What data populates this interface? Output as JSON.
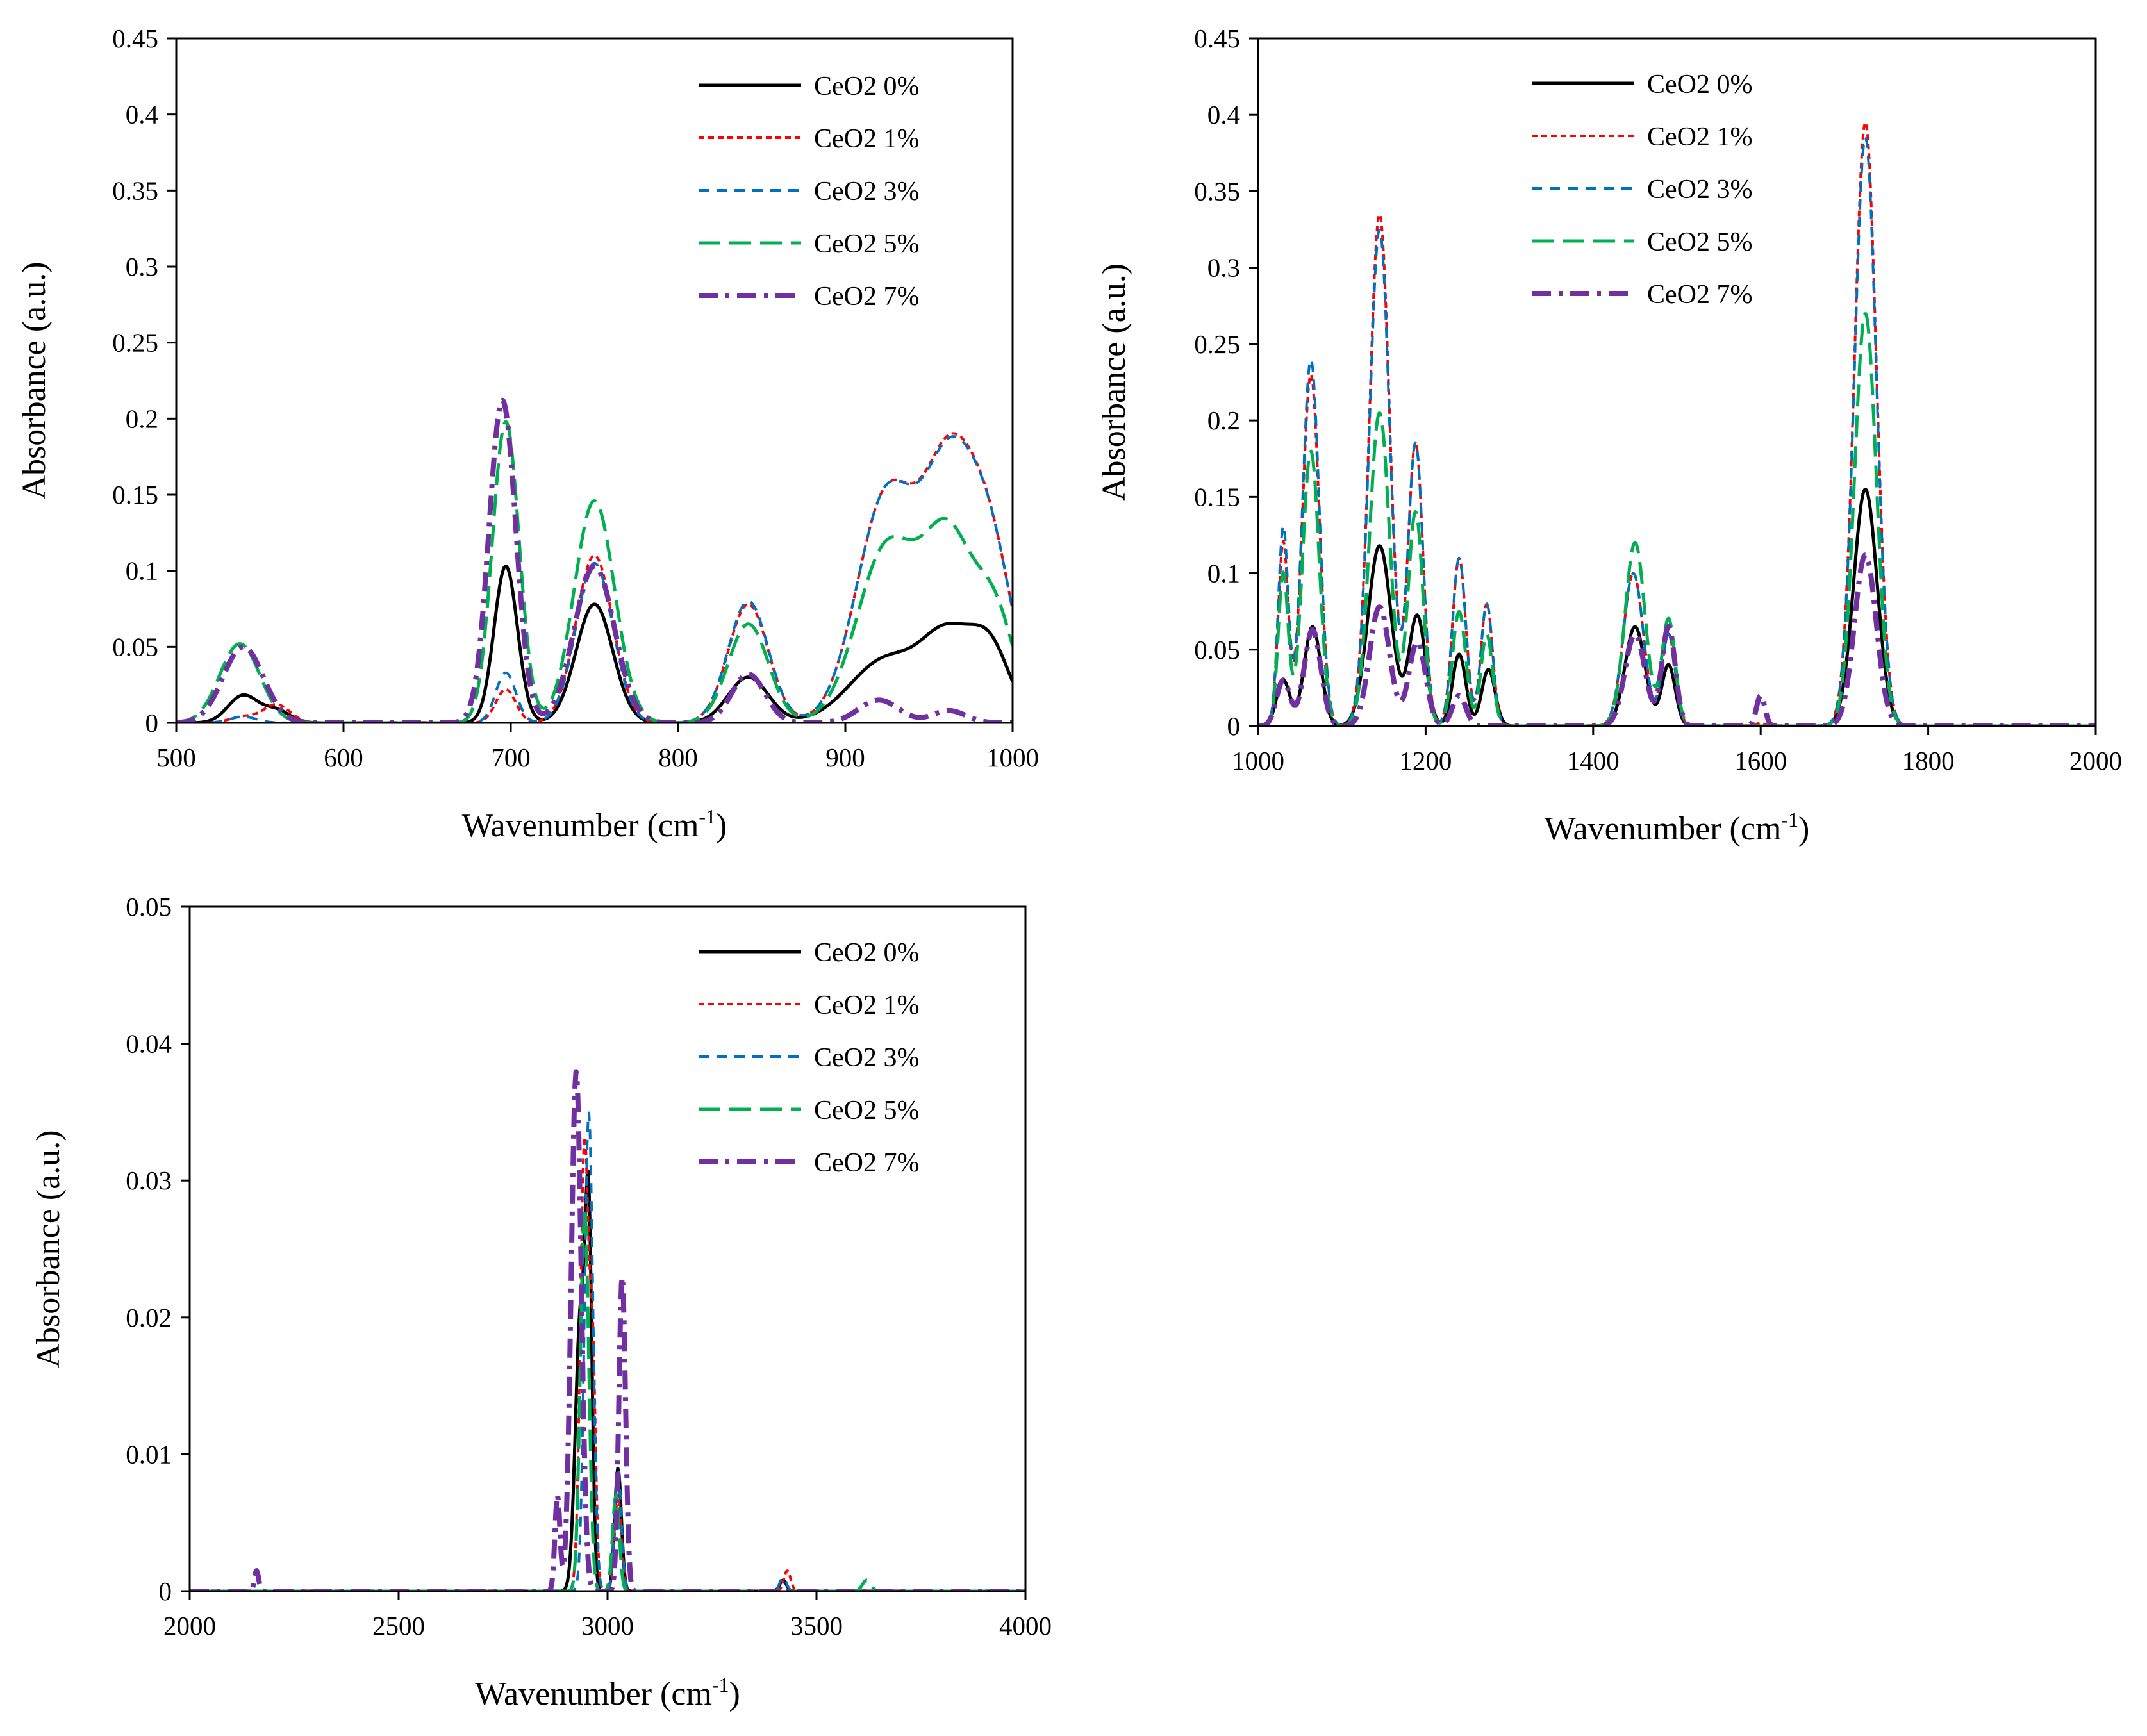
{
  "chart_data": [
    {
      "type": "line",
      "panel": "top-left",
      "xlabel": "Wavenumber (cm-1)",
      "xlabel_main": "Wavenumber (cm",
      "xlabel_sup": "-1",
      "xlabel_end": ")",
      "ylabel": "Absorbance (a.u.)",
      "xlim": [
        500,
        1000
      ],
      "ylim": [
        0,
        0.45
      ],
      "xticks": [
        "500",
        "600",
        "700",
        "800",
        "900",
        "1000"
      ],
      "yticks": [
        "0",
        "0.05",
        "0.1",
        "0.15",
        "0.2",
        "0.25",
        "0.3",
        "0.35",
        "0.4",
        "0.45"
      ],
      "legend_position": "top-right",
      "series": [
        {
          "name": "CeO2 0%",
          "peaks": [
            [
              540,
              0.018,
              9
            ],
            [
              560,
              0.008,
              8
            ],
            [
              697,
              0.103,
              7
            ],
            [
              750,
              0.078,
              11
            ],
            [
              842,
              0.03,
              12
            ],
            [
              925,
              0.042,
              22
            ],
            [
              962,
              0.05,
              15
            ],
            [
              987,
              0.045,
              12
            ]
          ]
        },
        {
          "name": "CeO2 1%",
          "peaks": [
            [
              540,
              0.004,
              8
            ],
            [
              560,
              0.012,
              8
            ],
            [
              697,
              0.022,
              6
            ],
            [
              750,
              0.11,
              11
            ],
            [
              842,
              0.078,
              12
            ],
            [
              925,
              0.15,
              18
            ],
            [
              962,
              0.15,
              15
            ],
            [
              987,
              0.105,
              14
            ]
          ]
        },
        {
          "name": "CeO2 3%",
          "peaks": [
            [
              540,
              0.004,
              8
            ],
            [
              697,
              0.033,
              6
            ],
            [
              750,
              0.105,
              11
            ],
            [
              842,
              0.08,
              12
            ],
            [
              925,
              0.15,
              18
            ],
            [
              962,
              0.148,
              15
            ],
            [
              987,
              0.105,
              14
            ]
          ]
        },
        {
          "name": "CeO2 5%",
          "peaks": [
            [
              538,
              0.052,
              12
            ],
            [
              697,
              0.198,
              8
            ],
            [
              750,
              0.146,
              12
            ],
            [
              842,
              0.065,
              12
            ],
            [
              925,
              0.115,
              18
            ],
            [
              962,
              0.115,
              15
            ],
            [
              990,
              0.065,
              12
            ]
          ]
        },
        {
          "name": "CeO2 7%",
          "peaks": [
            [
              540,
              0.05,
              12
            ],
            [
              695,
              0.212,
              8
            ],
            [
              750,
              0.103,
              12
            ],
            [
              842,
              0.032,
              10
            ],
            [
              920,
              0.015,
              12
            ],
            [
              962,
              0.008,
              10
            ]
          ]
        }
      ]
    },
    {
      "type": "line",
      "panel": "top-right",
      "xlabel": "Wavenumber (cm-1)",
      "xlabel_main": "Wavenumber (cm",
      "xlabel_sup": "-1",
      "xlabel_end": ")",
      "ylabel": "Absorbance (a.u.)",
      "xlim": [
        1000,
        2000
      ],
      "ylim": [
        0,
        0.45
      ],
      "xticks": [
        "1000",
        "1200",
        "1400",
        "1600",
        "1800",
        "2000"
      ],
      "yticks": [
        "0",
        "0.05",
        "0.1",
        "0.15",
        "0.2",
        "0.25",
        "0.3",
        "0.35",
        "0.4",
        "0.45"
      ],
      "legend_position": "top-left",
      "series": [
        {
          "name": "CeO2 0%",
          "peaks": [
            [
              1030,
              0.03,
              8
            ],
            [
              1065,
              0.065,
              10
            ],
            [
              1145,
              0.118,
              14
            ],
            [
              1190,
              0.072,
              10
            ],
            [
              1240,
              0.047,
              8
            ],
            [
              1275,
              0.037,
              8
            ],
            [
              1450,
              0.065,
              12
            ],
            [
              1490,
              0.04,
              8
            ],
            [
              1725,
              0.155,
              14
            ]
          ]
        },
        {
          "name": "CeO2 1%",
          "peaks": [
            [
              1030,
              0.12,
              6
            ],
            [
              1063,
              0.23,
              10
            ],
            [
              1145,
              0.335,
              12
            ],
            [
              1188,
              0.185,
              9
            ],
            [
              1240,
              0.11,
              8
            ],
            [
              1273,
              0.08,
              7
            ],
            [
              1448,
              0.1,
              12
            ],
            [
              1490,
              0.06,
              8
            ],
            [
              1600,
              0.002,
              5
            ],
            [
              1725,
              0.395,
              13
            ]
          ]
        },
        {
          "name": "CeO2 3%",
          "peaks": [
            [
              1030,
              0.13,
              6
            ],
            [
              1063,
              0.24,
              10
            ],
            [
              1145,
              0.325,
              12
            ],
            [
              1188,
              0.185,
              9
            ],
            [
              1240,
              0.11,
              8
            ],
            [
              1273,
              0.08,
              7
            ],
            [
              1448,
              0.1,
              12
            ],
            [
              1490,
              0.06,
              8
            ],
            [
              1725,
              0.385,
              13
            ]
          ]
        },
        {
          "name": "CeO2 5%",
          "peaks": [
            [
              1030,
              0.1,
              6
            ],
            [
              1063,
              0.18,
              10
            ],
            [
              1145,
              0.205,
              12
            ],
            [
              1188,
              0.14,
              9
            ],
            [
              1240,
              0.075,
              8
            ],
            [
              1273,
              0.06,
              7
            ],
            [
              1450,
              0.12,
              12
            ],
            [
              1490,
              0.07,
              8
            ],
            [
              1725,
              0.27,
              13
            ]
          ]
        },
        {
          "name": "CeO2 7%",
          "peaks": [
            [
              1030,
              0.03,
              8
            ],
            [
              1065,
              0.063,
              10
            ],
            [
              1145,
              0.078,
              12
            ],
            [
              1190,
              0.055,
              10
            ],
            [
              1240,
              0.02,
              8
            ],
            [
              1450,
              0.06,
              12
            ],
            [
              1490,
              0.065,
              8
            ],
            [
              1600,
              0.02,
              5
            ],
            [
              1725,
              0.112,
              13
            ]
          ]
        }
      ]
    },
    {
      "type": "line",
      "panel": "bottom-left",
      "xlabel": "Wavenumber (cm-1)",
      "xlabel_main": "Wavenumber (cm",
      "xlabel_sup": "-1",
      "xlabel_end": ")",
      "ylabel": "Absorbance (a.u.)",
      "xlim": [
        2000,
        4000
      ],
      "ylim": [
        0,
        0.05
      ],
      "xticks": [
        "2000",
        "2500",
        "3000",
        "3500",
        "4000"
      ],
      "yticks": [
        "0",
        "0.01",
        "0.02",
        "0.03",
        "0.04",
        "0.05"
      ],
      "legend_position": "top-right",
      "series": [
        {
          "name": "CeO2 0%",
          "peaks": [
            [
              2935,
              0.02,
              12
            ],
            [
              2955,
              0.025,
              8
            ],
            [
              3025,
              0.009,
              8
            ],
            [
              3420,
              0.0008,
              8
            ]
          ]
        },
        {
          "name": "CeO2 1%",
          "peaks": [
            [
              2945,
              0.033,
              10
            ],
            [
              2965,
              0.015,
              7
            ],
            [
              3025,
              0.007,
              8
            ],
            [
              3430,
              0.0015,
              8
            ]
          ]
        },
        {
          "name": "CeO2 3%",
          "peaks": [
            [
              2955,
              0.035,
              10
            ],
            [
              3025,
              0.009,
              8
            ],
            [
              3420,
              0.001,
              8
            ]
          ]
        },
        {
          "name": "CeO2 5%",
          "peaks": [
            [
              2945,
              0.028,
              10
            ],
            [
              3020,
              0.007,
              8
            ],
            [
              3620,
              0.0008,
              10
            ]
          ]
        },
        {
          "name": "CeO2 7%",
          "peaks": [
            [
              2925,
              0.038,
              12
            ],
            [
              2880,
              0.007,
              6
            ],
            [
              3035,
              0.023,
              8
            ],
            [
              2160,
              0.0015,
              5
            ]
          ]
        }
      ]
    }
  ],
  "series_styles": [
    {
      "name": "CeO2 0%",
      "color": "#000000",
      "dash": ""
    },
    {
      "name": "CeO2 1%",
      "color": "#ff0000",
      "dash": "dotted"
    },
    {
      "name": "CeO2 3%",
      "color": "#0070c0",
      "dash": "short"
    },
    {
      "name": "CeO2 5%",
      "color": "#00b050",
      "dash": "long"
    },
    {
      "name": "CeO2 7%",
      "color": "#7030a0",
      "dash": "dash-dot"
    }
  ]
}
